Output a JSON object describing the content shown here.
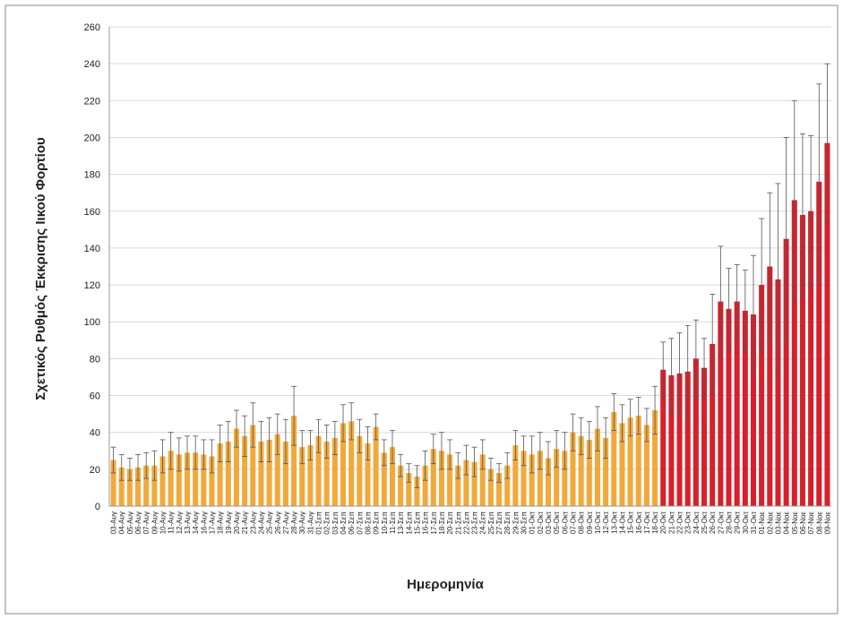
{
  "chart_data": {
    "type": "bar",
    "ylabel": "Σχετικός Ρυθμός Έκκρισης Ιικού Φορτίου",
    "xlabel": "Ημερομηνία",
    "categories": [
      "03-Αυγ",
      "04-Αυγ",
      "05-Αυγ",
      "06-Αυγ",
      "07-Αυγ",
      "09-Αυγ",
      "10-Αυγ",
      "11-Αυγ",
      "12-Αυγ",
      "13-Αυγ",
      "14-Αυγ",
      "16-Αυγ",
      "17-Αυγ",
      "18-Αυγ",
      "19-Αυγ",
      "20-Αυγ",
      "21-Αυγ",
      "23-Αυγ",
      "24-Αυγ",
      "25-Αυγ",
      "26-Αυγ",
      "27-Αυγ",
      "28-Αυγ",
      "30-Αυγ",
      "31-Αυγ",
      "01-Σεπ",
      "02-Σεπ",
      "03-Σεπ",
      "04-Σεπ",
      "06-Σεπ",
      "07-Σεπ",
      "08-Σεπ",
      "09-Σεπ",
      "10-Σεπ",
      "11-Σεπ",
      "13-Σεπ",
      "14-Σεπ",
      "15-Σεπ",
      "16-Σεπ",
      "17-Σεπ",
      "18-Σεπ",
      "20-Σεπ",
      "21-Σεπ",
      "22-Σεπ",
      "23-Σεπ",
      "24-Σεπ",
      "25-Σεπ",
      "27-Σεπ",
      "28-Σεπ",
      "29-Σεπ",
      "30-Σεπ",
      "01-Οκτ",
      "02-Οκτ",
      "03-Οκτ",
      "05-Οκτ",
      "06-Οκτ",
      "07-Οκτ",
      "08-Οκτ",
      "09-Οκτ",
      "10-Οκτ",
      "12-Οκτ",
      "13-Οκτ",
      "14-Οκτ",
      "15-Οκτ",
      "16-Οκτ",
      "17-Οκτ",
      "18-Οκτ",
      "20-Οκτ",
      "21-Οκτ",
      "22-Οκτ",
      "23-Οκτ",
      "24-Οκτ",
      "25-Οκτ",
      "26-Οκτ",
      "27-Οκτ",
      "28-Οκτ",
      "29-Οκτ",
      "30-Οκτ",
      "31-Οκτ",
      "01-Νοε",
      "02-Νοε",
      "03-Νοε",
      "04-Νοε",
      "05-Νοε",
      "06-Νοε",
      "07-Νοε",
      "08-Νοε",
      "09-Νοε"
    ],
    "values": [
      25,
      21,
      20,
      21,
      22,
      22,
      27,
      30,
      28,
      29,
      29,
      28,
      27,
      34,
      35,
      42,
      38,
      44,
      35,
      36,
      39,
      35,
      49,
      32,
      33,
      38,
      35,
      37,
      45,
      46,
      38,
      34,
      43,
      29,
      32,
      22,
      18,
      16,
      22,
      31,
      30,
      28,
      22,
      25,
      24,
      28,
      20,
      18,
      22,
      33,
      30,
      28,
      30,
      26,
      31,
      30,
      40,
      38,
      36,
      42,
      37,
      51,
      45,
      48,
      49,
      44,
      52,
      74,
      71,
      72,
      73,
      80,
      75,
      88,
      111,
      107,
      111,
      106,
      104,
      120,
      130,
      123,
      145,
      166,
      158,
      160,
      176,
      197
    ],
    "errors": [
      7,
      7,
      6,
      7,
      7,
      8,
      9,
      10,
      9,
      9,
      9,
      8,
      9,
      10,
      11,
      10,
      11,
      12,
      11,
      12,
      11,
      12,
      16,
      9,
      8,
      9,
      9,
      9,
      10,
      10,
      9,
      9,
      7,
      7,
      9,
      6,
      5,
      6,
      8,
      8,
      10,
      8,
      7,
      8,
      8,
      8,
      6,
      5,
      7,
      8,
      8,
      10,
      10,
      9,
      10,
      10,
      10,
      10,
      10,
      12,
      11,
      10,
      10,
      10,
      10,
      9,
      13,
      15,
      20,
      22,
      25,
      21,
      16,
      27,
      30,
      22,
      20,
      22,
      32,
      36,
      40,
      52,
      55,
      54,
      44,
      41,
      53,
      43
    ],
    "colors": [
      "#f2a93b",
      "#f2a93b",
      "#f2a93b",
      "#f2a93b",
      "#f2a93b",
      "#f2a93b",
      "#f2a93b",
      "#f2a93b",
      "#f2a93b",
      "#f2a93b",
      "#f2a93b",
      "#f2a93b",
      "#f2a93b",
      "#f2a93b",
      "#f2a93b",
      "#f2a93b",
      "#f2a93b",
      "#f2a93b",
      "#f2a93b",
      "#f2a93b",
      "#f2a93b",
      "#f2a93b",
      "#f2a93b",
      "#f2a93b",
      "#f2a93b",
      "#f2a93b",
      "#f2a93b",
      "#f2a93b",
      "#f2a93b",
      "#f2a93b",
      "#f2a93b",
      "#f2a93b",
      "#f2a93b",
      "#f2a93b",
      "#f2a93b",
      "#f2a93b",
      "#f2a93b",
      "#f2a93b",
      "#f2a93b",
      "#f2a93b",
      "#f2a93b",
      "#f2a93b",
      "#f2a93b",
      "#f2a93b",
      "#f2a93b",
      "#f2a93b",
      "#f2a93b",
      "#f2a93b",
      "#f2a93b",
      "#f2a93b",
      "#f2a93b",
      "#f2a93b",
      "#f2a93b",
      "#f2a93b",
      "#f2a93b",
      "#f2a93b",
      "#f2a93b",
      "#f2a93b",
      "#f2a93b",
      "#f2a93b",
      "#f2a93b",
      "#f2a93b",
      "#f2a93b",
      "#f2a93b",
      "#f2a93b",
      "#f2a93b",
      "#f2a93b",
      "#d7202b",
      "#d7202b",
      "#d7202b",
      "#d7202b",
      "#d7202b",
      "#d7202b",
      "#d7202b",
      "#d7202b",
      "#d7202b",
      "#d7202b",
      "#d7202b",
      "#d7202b",
      "#d7202b",
      "#d7202b",
      "#d7202b",
      "#d7202b",
      "#d7202b",
      "#d7202b",
      "#d7202b",
      "#d7202b",
      "#d7202b"
    ],
    "ylim": [
      0,
      260
    ],
    "yticks": [
      0,
      20,
      40,
      60,
      80,
      100,
      120,
      140,
      160,
      180,
      200,
      220,
      240,
      260
    ],
    "grid": true
  }
}
